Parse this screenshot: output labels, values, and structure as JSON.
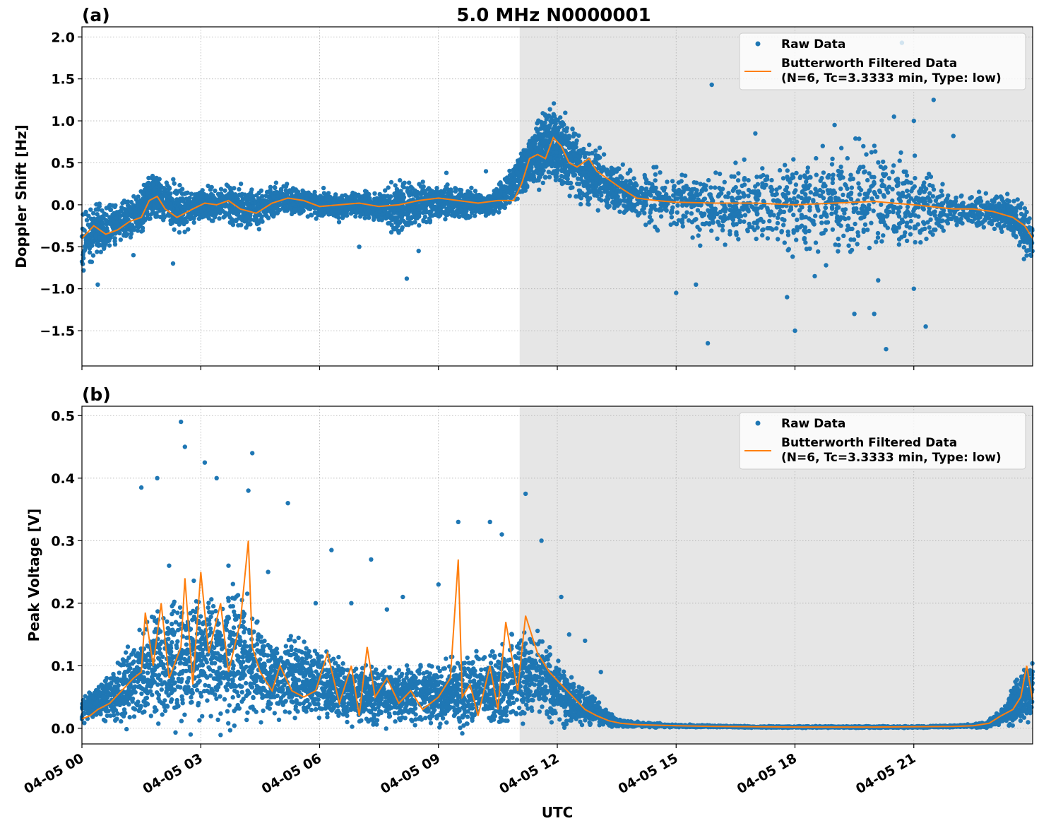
{
  "figure": {
    "title": "5.0 MHz N0000001",
    "xlabel": "UTC",
    "x_tick_labels": [
      "04-05 00",
      "04-05 03",
      "04-05 06",
      "04-05 09",
      "04-05 12",
      "04-05 15",
      "04-05 18",
      "04-05 21"
    ],
    "colors": {
      "raw": "#1f77b4",
      "filtered": "#ff7f0e",
      "night_shade": "#e6e6e6",
      "grid": "#b0b0b0"
    }
  },
  "chart_data": [
    {
      "type": "scatter",
      "panel_label": "(a)",
      "ylabel": "Doppler Shift [Hz]",
      "xlim_hours": [
        0,
        24
      ],
      "ylim": [
        -1.92,
        2.12
      ],
      "y_ticks": [
        2.0,
        1.5,
        1.0,
        0.5,
        0.0,
        -0.5,
        -1.0,
        -1.5
      ],
      "y_tick_labels": [
        "2.0",
        "1.5",
        "1.0",
        "0.5",
        "0.0",
        "−0.5",
        "−1.0",
        "−1.5"
      ],
      "shaded_span_hours": [
        11.05,
        24
      ],
      "grid": true,
      "legend": {
        "placement": "top-right",
        "raw_label": "Raw Data",
        "filtered_label_line1": "Butterworth Filtered Data",
        "filtered_label_line2": "(N=6, Tc=3.3333 min, Type: low)"
      },
      "series": [
        {
          "name": "Raw Data",
          "style": "points",
          "note_x_units": "hours UTC on 04-05",
          "x": [
            0,
            0.5,
            1.0,
            1.5,
            1.8,
            2.0,
            2.5,
            3.0,
            3.5,
            4.0,
            4.5,
            5.0,
            5.5,
            6.0,
            6.5,
            7.0,
            7.5,
            8.0,
            8.5,
            9.0,
            9.5,
            10.0,
            10.5,
            11.0,
            11.3,
            11.6,
            11.9,
            12.2,
            12.6,
            13.0,
            13.5,
            14.0,
            15.0,
            16.0,
            17.0,
            18.0,
            19.0,
            20.0,
            21.0,
            22.0,
            23.0,
            23.5,
            24.0
          ],
          "center": [
            -0.35,
            -0.3,
            -0.2,
            -0.1,
            0.15,
            0.05,
            -0.05,
            0.0,
            0.0,
            -0.02,
            -0.05,
            0.08,
            0.05,
            0.0,
            -0.02,
            0.0,
            -0.02,
            -0.05,
            0.0,
            0.05,
            0.02,
            0.02,
            0.05,
            0.3,
            0.55,
            0.65,
            0.75,
            0.6,
            0.4,
            0.3,
            0.2,
            0.1,
            0.05,
            0.0,
            0.0,
            0.0,
            0.0,
            0.05,
            0.0,
            -0.05,
            -0.08,
            -0.15,
            -0.4
          ],
          "spread": [
            0.3,
            0.2,
            0.15,
            0.2,
            0.2,
            0.2,
            0.2,
            0.15,
            0.15,
            0.2,
            0.15,
            0.15,
            0.12,
            0.12,
            0.12,
            0.12,
            0.12,
            0.25,
            0.2,
            0.15,
            0.15,
            0.12,
            0.12,
            0.2,
            0.25,
            0.3,
            0.35,
            0.35,
            0.3,
            0.25,
            0.2,
            0.2,
            0.3,
            0.35,
            0.35,
            0.45,
            0.5,
            0.5,
            0.4,
            0.15,
            0.15,
            0.2,
            0.25
          ],
          "outlier_points": [
            [
              0.4,
              -0.95
            ],
            [
              1.3,
              -0.6
            ],
            [
              2.3,
              -0.7
            ],
            [
              6.1,
              0.2
            ],
            [
              7.0,
              -0.5
            ],
            [
              8.2,
              -0.88
            ],
            [
              8.5,
              -0.55
            ],
            [
              9.2,
              0.38
            ],
            [
              10.2,
              0.4
            ],
            [
              15.0,
              -1.05
            ],
            [
              15.5,
              -0.95
            ],
            [
              15.8,
              -1.65
            ],
            [
              15.9,
              1.43
            ],
            [
              16.5,
              0.5
            ],
            [
              17.0,
              0.85
            ],
            [
              18.0,
              -1.5
            ],
            [
              18.5,
              -0.85
            ],
            [
              19.0,
              0.95
            ],
            [
              19.5,
              -1.3
            ],
            [
              20.0,
              -1.3
            ],
            [
              20.3,
              -1.72
            ],
            [
              20.5,
              1.05
            ],
            [
              20.7,
              1.93
            ],
            [
              21.0,
              1.0
            ],
            [
              21.3,
              -1.45
            ],
            [
              21.5,
              1.25
            ],
            [
              22.0,
              0.82
            ],
            [
              17.8,
              -1.1
            ],
            [
              16.8,
              -0.3
            ],
            [
              14.5,
              0.45
            ],
            [
              18.7,
              0.7
            ],
            [
              19.8,
              0.6
            ],
            [
              21.0,
              -1.0
            ],
            [
              20.1,
              -0.9
            ]
          ]
        },
        {
          "name": "Butterworth Filtered Data",
          "style": "line",
          "x": [
            0,
            0.3,
            0.6,
            0.9,
            1.2,
            1.5,
            1.7,
            1.9,
            2.1,
            2.4,
            2.8,
            3.1,
            3.4,
            3.7,
            4.0,
            4.4,
            4.8,
            5.2,
            5.6,
            6.0,
            6.5,
            7.0,
            7.5,
            8.0,
            8.5,
            9.0,
            9.5,
            10.0,
            10.5,
            10.9,
            11.1,
            11.3,
            11.5,
            11.7,
            11.9,
            12.1,
            12.3,
            12.5,
            12.8,
            13.0,
            13.3,
            13.6,
            14.0,
            14.5,
            15.0,
            16.0,
            17.0,
            18.0,
            19.0,
            20.0,
            21.0,
            22.0,
            22.5,
            23.0,
            23.5,
            23.8,
            24.0
          ],
          "y": [
            -0.4,
            -0.25,
            -0.35,
            -0.3,
            -0.2,
            -0.15,
            0.05,
            0.1,
            -0.05,
            -0.15,
            -0.05,
            0.02,
            0.0,
            0.05,
            -0.05,
            -0.1,
            0.02,
            0.08,
            0.05,
            -0.02,
            0.0,
            0.02,
            -0.02,
            0.0,
            0.05,
            0.08,
            0.05,
            0.02,
            0.05,
            0.05,
            0.25,
            0.55,
            0.6,
            0.55,
            0.8,
            0.7,
            0.5,
            0.45,
            0.55,
            0.4,
            0.3,
            0.2,
            0.08,
            0.05,
            0.03,
            0.02,
            0.02,
            0.0,
            0.02,
            0.04,
            0.0,
            -0.05,
            -0.05,
            -0.08,
            -0.15,
            -0.25,
            -0.4
          ]
        }
      ]
    },
    {
      "type": "scatter",
      "panel_label": "(b)",
      "ylabel": "Peak Voltage [V]",
      "xlim_hours": [
        0,
        24
      ],
      "ylim": [
        -0.025,
        0.515
      ],
      "y_ticks": [
        0.0,
        0.1,
        0.2,
        0.3,
        0.4,
        0.5
      ],
      "y_tick_labels": [
        "0.0",
        "0.1",
        "0.2",
        "0.3",
        "0.4",
        "0.5"
      ],
      "shaded_span_hours": [
        11.05,
        24
      ],
      "grid": true,
      "legend": {
        "placement": "top-right",
        "raw_label": "Raw Data",
        "filtered_label_line1": "Butterworth Filtered Data",
        "filtered_label_line2": "(N=6, Tc=3.3333 min, Type: low)"
      },
      "series": [
        {
          "name": "Raw Data",
          "style": "points",
          "note_x_units": "hours UTC on 04-05",
          "x": [
            0,
            0.5,
            1.0,
            1.5,
            2.0,
            2.5,
            3.0,
            3.5,
            4.0,
            4.5,
            5.0,
            5.5,
            6.0,
            6.5,
            7.0,
            7.5,
            8.0,
            8.5,
            9.0,
            9.5,
            10.0,
            10.5,
            11.0,
            11.5,
            12.0,
            12.5,
            13.0,
            13.3,
            13.6,
            14.0,
            15.0,
            16.0,
            17.0,
            18.0,
            19.0,
            20.0,
            21.0,
            22.0,
            22.8,
            23.3,
            23.6,
            24.0
          ],
          "center": [
            0.03,
            0.045,
            0.06,
            0.09,
            0.1,
            0.11,
            0.12,
            0.11,
            0.11,
            0.09,
            0.08,
            0.08,
            0.07,
            0.06,
            0.06,
            0.05,
            0.05,
            0.05,
            0.055,
            0.06,
            0.06,
            0.065,
            0.085,
            0.08,
            0.06,
            0.04,
            0.025,
            0.015,
            0.008,
            0.006,
            0.004,
            0.003,
            0.002,
            0.002,
            0.002,
            0.002,
            0.002,
            0.003,
            0.005,
            0.02,
            0.045,
            0.06
          ],
          "spread": [
            0.015,
            0.025,
            0.04,
            0.06,
            0.07,
            0.08,
            0.08,
            0.08,
            0.08,
            0.06,
            0.05,
            0.05,
            0.045,
            0.04,
            0.04,
            0.035,
            0.035,
            0.035,
            0.04,
            0.045,
            0.045,
            0.05,
            0.06,
            0.05,
            0.04,
            0.025,
            0.015,
            0.008,
            0.004,
            0.003,
            0.002,
            0.001,
            0.001,
            0.001,
            0.001,
            0.001,
            0.001,
            0.001,
            0.003,
            0.01,
            0.03,
            0.035
          ],
          "outlier_points": [
            [
              1.5,
              0.385
            ],
            [
              1.9,
              0.4
            ],
            [
              2.5,
              0.49
            ],
            [
              2.6,
              0.45
            ],
            [
              3.1,
              0.425
            ],
            [
              3.4,
              0.4
            ],
            [
              4.3,
              0.44
            ],
            [
              4.2,
              0.38
            ],
            [
              4.7,
              0.25
            ],
            [
              5.2,
              0.36
            ],
            [
              6.3,
              0.285
            ],
            [
              6.8,
              0.2
            ],
            [
              7.3,
              0.27
            ],
            [
              7.7,
              0.19
            ],
            [
              8.1,
              0.21
            ],
            [
              9.5,
              0.33
            ],
            [
              10.3,
              0.33
            ],
            [
              10.6,
              0.31
            ],
            [
              11.2,
              0.375
            ],
            [
              11.6,
              0.3
            ],
            [
              12.1,
              0.21
            ],
            [
              12.3,
              0.15
            ],
            [
              12.7,
              0.14
            ],
            [
              13.1,
              0.09
            ],
            [
              2.2,
              0.26
            ],
            [
              3.7,
              0.26
            ],
            [
              5.9,
              0.2
            ],
            [
              9.0,
              0.23
            ]
          ]
        },
        {
          "name": "Butterworth Filtered Data",
          "style": "line",
          "x": [
            0,
            0.2,
            0.4,
            0.7,
            1.0,
            1.3,
            1.5,
            1.6,
            1.8,
            2.0,
            2.2,
            2.5,
            2.6,
            2.8,
            3.0,
            3.2,
            3.5,
            3.7,
            4.0,
            4.2,
            4.3,
            4.5,
            4.8,
            5.0,
            5.3,
            5.6,
            5.9,
            6.2,
            6.5,
            6.8,
            7.0,
            7.2,
            7.4,
            7.7,
            8.0,
            8.3,
            8.6,
            9.0,
            9.3,
            9.5,
            9.6,
            9.8,
            10.0,
            10.3,
            10.5,
            10.7,
            11.0,
            11.2,
            11.5,
            11.8,
            12.1,
            12.4,
            12.7,
            13.0,
            13.3,
            13.6,
            14.0,
            15.0,
            16.0,
            18.0,
            20.0,
            22.0,
            22.5,
            22.9,
            23.2,
            23.5,
            23.7,
            23.85,
            24.0
          ],
          "y": [
            0.015,
            0.02,
            0.03,
            0.04,
            0.06,
            0.08,
            0.09,
            0.185,
            0.1,
            0.2,
            0.08,
            0.13,
            0.24,
            0.07,
            0.25,
            0.12,
            0.2,
            0.09,
            0.17,
            0.3,
            0.13,
            0.09,
            0.06,
            0.1,
            0.06,
            0.05,
            0.06,
            0.12,
            0.04,
            0.1,
            0.02,
            0.13,
            0.05,
            0.08,
            0.04,
            0.06,
            0.03,
            0.05,
            0.08,
            0.27,
            0.05,
            0.07,
            0.02,
            0.1,
            0.03,
            0.17,
            0.06,
            0.18,
            0.12,
            0.09,
            0.07,
            0.05,
            0.03,
            0.02,
            0.012,
            0.008,
            0.006,
            0.004,
            0.003,
            0.002,
            0.002,
            0.003,
            0.004,
            0.008,
            0.02,
            0.03,
            0.05,
            0.1,
            0.045
          ]
        }
      ]
    }
  ]
}
